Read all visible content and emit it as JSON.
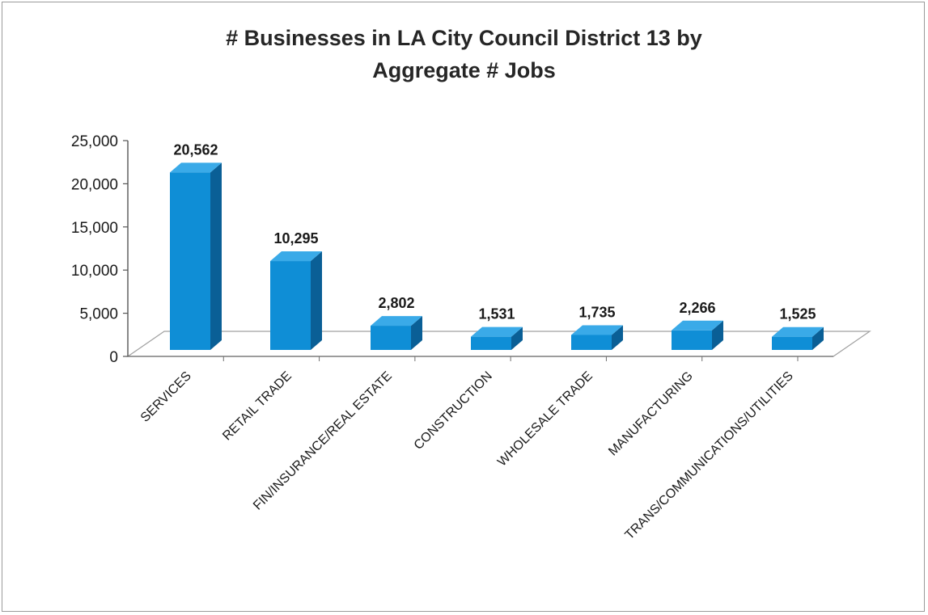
{
  "chart_data": {
    "type": "bar",
    "title_line1": "# Businesses in LA City Council District 13 by",
    "title_line2": "Aggregate # Jobs",
    "categories": [
      "SERVICES",
      "RETAIL TRADE",
      "FIN/INSURANCE/REAL ESTATE",
      "CONSTRUCTION",
      "WHOLESALE TRADE",
      "MANUFACTURING",
      "TRANS/COMMUNICATIONS/UTILITIES"
    ],
    "values": [
      20562,
      10295,
      2802,
      1531,
      1735,
      2266,
      1525
    ],
    "data_labels": [
      "20,562",
      "10,295",
      "2,802",
      "1,531",
      "1,735",
      "2,266",
      "1,525"
    ],
    "yticks": [
      0,
      5000,
      10000,
      15000,
      20000,
      25000
    ],
    "ytick_labels": [
      "0",
      "5,000",
      "10,000",
      "15,000",
      "20,000",
      "25,000"
    ],
    "ylim": [
      0,
      25000
    ],
    "xlabel": "",
    "ylabel": "",
    "grid": false,
    "legend": "none",
    "bar_color": "#0f8ed6",
    "bar_side_color": "#0a5f96",
    "bar_top_color": "#3aaae8"
  }
}
